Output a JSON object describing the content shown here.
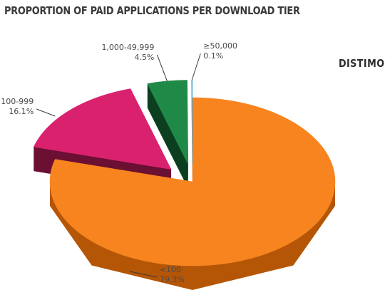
{
  "header": {
    "title": "PROPORTION OF PAID APPLICATIONS PER DOWNLOAD TIER"
  },
  "brand": {
    "name": "DISTIMO"
  },
  "colors": {
    "orange": "#f7841e",
    "orange_side": "#b55606",
    "magenta": "#d9216e",
    "magenta_side": "#6b0f33",
    "green": "#1f8a48",
    "green_side": "#0b3f20",
    "blue": "#4aa3d8"
  },
  "chart_data": {
    "type": "pie",
    "style": "3d-exploded",
    "categories": [
      "<100",
      "100-999",
      "1,000-49,999",
      "≥50,000"
    ],
    "values": [
      79.3,
      16.1,
      4.5,
      0.1
    ],
    "value_labels": [
      "79.3%",
      "16.1%",
      "4.5%",
      "0.1%"
    ],
    "title": "PROPORTION OF PAID APPLICATIONS PER DOWNLOAD TIER"
  }
}
